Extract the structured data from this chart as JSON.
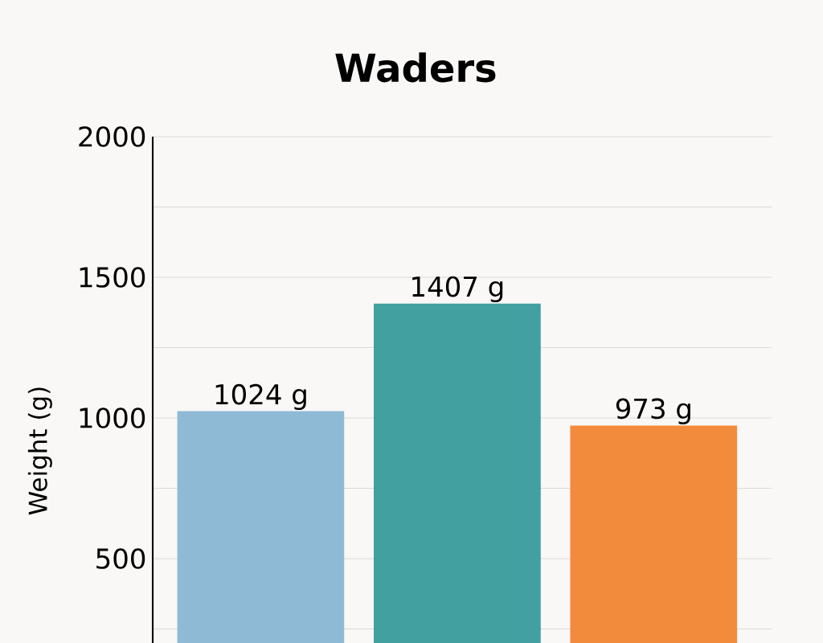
{
  "chart_data": {
    "type": "bar",
    "title": "Waders",
    "ylabel": "Weight (g)",
    "categories": [
      null,
      null,
      null
    ],
    "values": [
      1024,
      1407,
      973
    ],
    "value_labels": [
      "1024 g",
      "1407 g",
      "973 g"
    ],
    "colors": [
      "#8fbad6",
      "#42a0a0",
      "#f28c3c"
    ],
    "ylim": [
      200,
      2000
    ],
    "yticks": [
      {
        "value": 250,
        "label": null
      },
      500,
      {
        "value": 750,
        "label": null
      },
      1000,
      {
        "value": 1250,
        "label": null
      },
      1500,
      {
        "value": 1750,
        "label": null
      },
      2000
    ],
    "grid": "y"
  }
}
